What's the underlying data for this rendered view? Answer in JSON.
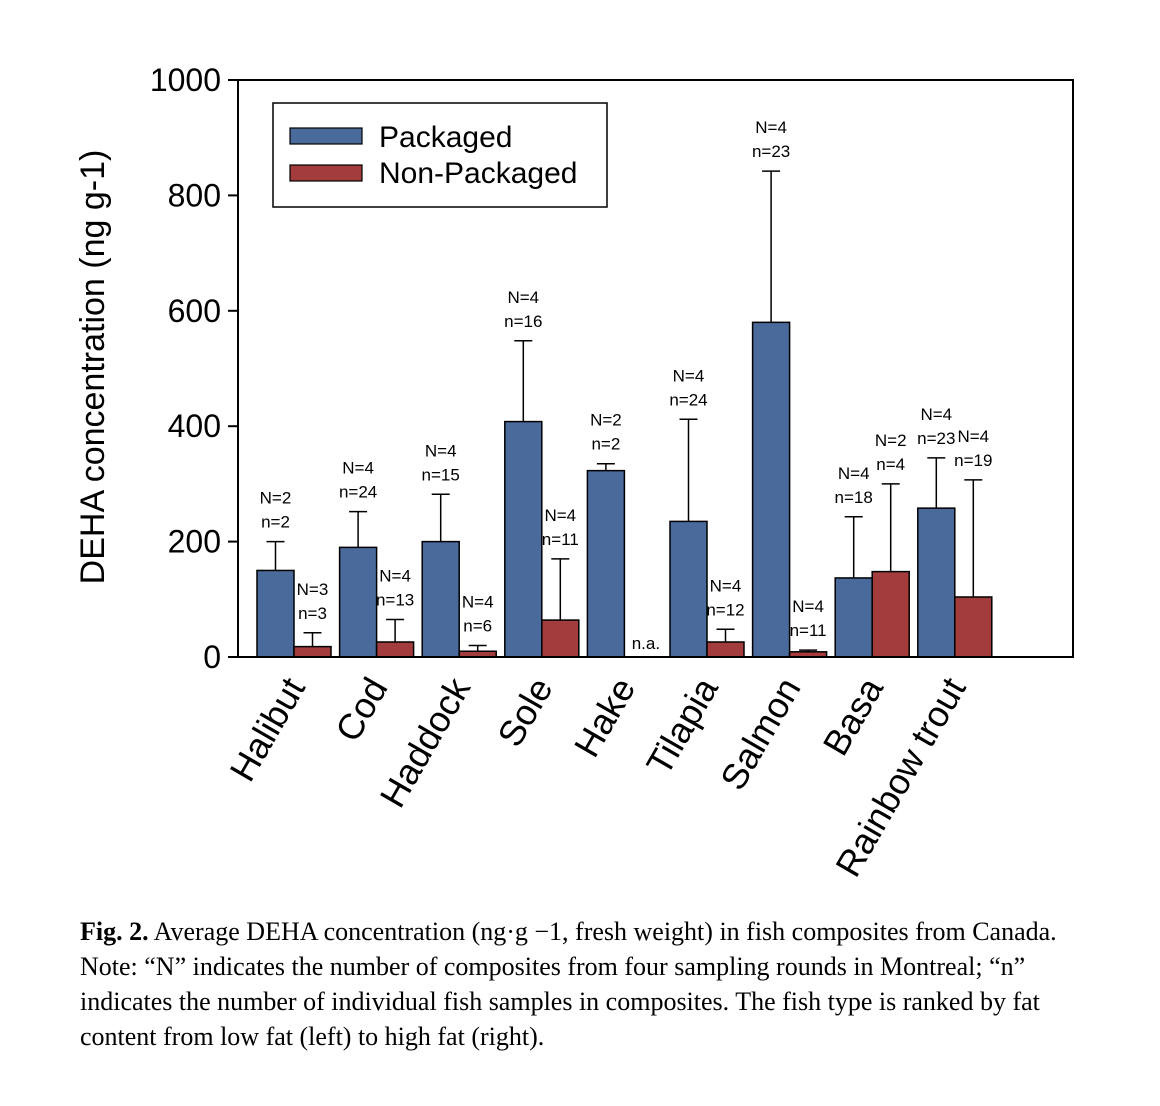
{
  "chart_data": {
    "type": "bar",
    "ylabel": "DEHA concentration (ng g-1)",
    "ylim": [
      0,
      1000
    ],
    "yticks": [
      "0",
      "200",
      "400",
      "600",
      "800",
      "1000"
    ],
    "categories": [
      "Halibut",
      "Cod",
      "Haddock",
      "Sole",
      "Hake",
      "Tilapia",
      "Salmon",
      "Basa",
      "Rainbow trout"
    ],
    "legend": {
      "position": "top-left"
    },
    "series": [
      {
        "name": "Packaged",
        "color": "#4A6A9C",
        "values": [
          150,
          190,
          200,
          408,
          323,
          235,
          580,
          137,
          258
        ],
        "error_upper": [
          200,
          252,
          282,
          548,
          335,
          412,
          842,
          243,
          345
        ],
        "annotations": [
          [
            "N=2",
            "n=2"
          ],
          [
            "N=4",
            "n=24"
          ],
          [
            "N=4",
            "n=15"
          ],
          [
            "N=4",
            "n=16"
          ],
          [
            "N=2",
            "n=2"
          ],
          [
            "N=4",
            "n=24"
          ],
          [
            "N=4",
            "n=23"
          ],
          [
            "N=4",
            "n=18"
          ],
          [
            "N=4",
            "n=23"
          ]
        ]
      },
      {
        "name": "Non-Packaged",
        "color": "#A33D3D",
        "values": [
          18,
          26,
          10,
          64,
          null,
          26,
          9,
          148,
          104
        ],
        "error_upper": [
          42,
          65,
          20,
          170,
          null,
          48,
          12,
          300,
          307
        ],
        "annotations": [
          [
            "N=3",
            "n=3"
          ],
          [
            "N=4",
            "n=13"
          ],
          [
            "N=4",
            "n=6"
          ],
          [
            "N=4",
            "n=11"
          ],
          [
            "n.a."
          ],
          [
            "N=4",
            "n=12"
          ],
          [
            "N=4",
            "n=11"
          ],
          [
            "N=2",
            "n=4"
          ],
          [
            "N=4",
            "n=19"
          ]
        ]
      }
    ]
  },
  "caption": {
    "label": "Fig. 2.",
    "text": " Average DEHA concentration (ng·g −1, fresh weight) in fish composites from Canada. Note: “N” indicates the number of composites from four sampling rounds in Montreal; “n” indicates the number of individual fish samples in composites. The fish type is ranked by fat content from low fat (left) to high fat (right)."
  }
}
